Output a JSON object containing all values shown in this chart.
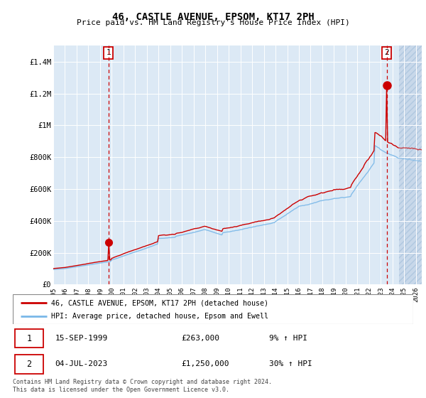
{
  "title": "46, CASTLE AVENUE, EPSOM, KT17 2PH",
  "subtitle": "Price paid vs. HM Land Registry's House Price Index (HPI)",
  "ylim": [
    0,
    1500000
  ],
  "xlim_start": 1995.0,
  "xlim_end": 2026.5,
  "sale1_date": 1999.71,
  "sale1_price": 263000,
  "sale2_date": 2023.5,
  "sale2_price": 1250000,
  "legend_line1": "46, CASTLE AVENUE, EPSOM, KT17 2PH (detached house)",
  "legend_line2": "HPI: Average price, detached house, Epsom and Ewell",
  "table_row1": [
    "1",
    "15-SEP-1999",
    "£263,000",
    "9% ↑ HPI"
  ],
  "table_row2": [
    "2",
    "04-JUL-2023",
    "£1,250,000",
    "30% ↑ HPI"
  ],
  "footer": "Contains HM Land Registry data © Crown copyright and database right 2024.\nThis data is licensed under the Open Government Licence v3.0.",
  "hpi_color": "#7ab8e8",
  "price_color": "#cc0000",
  "bg_color": "#dce9f5",
  "grid_color": "#ffffff",
  "future_hatch_start": 2024.58
}
